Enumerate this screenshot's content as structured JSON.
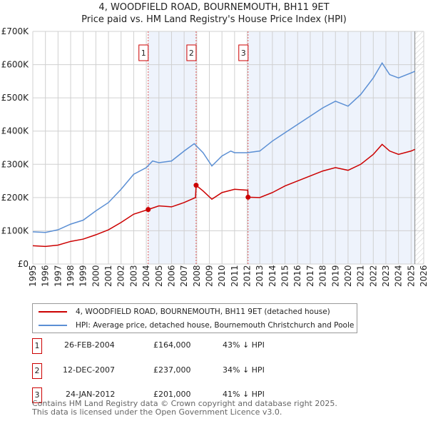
{
  "title": "4, WOODFIELD ROAD, BOURNEMOUTH, BH11 9ET",
  "subtitle": "Price paid vs. HM Land Registry's House Price Index (HPI)",
  "chart_data": {
    "type": "line",
    "xlim": [
      1995,
      2026
    ],
    "ylim": [
      0,
      700000
    ],
    "y_ticks": [
      0,
      100000,
      200000,
      300000,
      400000,
      500000,
      600000,
      700000
    ],
    "y_tick_labels": [
      "£0",
      "£100K",
      "£200K",
      "£300K",
      "£400K",
      "£500K",
      "£600K",
      "£700K"
    ],
    "x_ticks": [
      1995,
      1996,
      1997,
      1998,
      1999,
      2000,
      2001,
      2002,
      2003,
      2004,
      2005,
      2006,
      2007,
      2008,
      2009,
      2010,
      2011,
      2012,
      2013,
      2014,
      2015,
      2016,
      2017,
      2018,
      2019,
      2020,
      2021,
      2022,
      2023,
      2024,
      2025,
      2026
    ],
    "grid": true,
    "future_hatch_from": 2025.3,
    "series": [
      {
        "name": "4, WOODFIELD ROAD, BOURNEMOUTH, BH11 9ET (detached house)",
        "color": "#cc0000",
        "x": [
          1995,
          1996,
          1997,
          1998,
          1999,
          2000,
          2001,
          2002,
          2003,
          2004.15,
          2005,
          2006,
          2007,
          2007.9,
          2007.95,
          2008.5,
          2009.2,
          2010,
          2011,
          2012.05,
          2012.07,
          2013,
          2014,
          2015,
          2016,
          2017,
          2018,
          2019,
          2020,
          2021,
          2022,
          2022.7,
          2023.3,
          2024,
          2025,
          2025.3
        ],
        "y": [
          55000,
          53000,
          57000,
          68000,
          75000,
          88000,
          103000,
          125000,
          150000,
          164000,
          175000,
          172000,
          185000,
          200000,
          237000,
          220000,
          195000,
          215000,
          225000,
          222000,
          201000,
          200000,
          215000,
          235000,
          250000,
          265000,
          280000,
          290000,
          282000,
          300000,
          330000,
          360000,
          340000,
          330000,
          340000,
          345000
        ]
      },
      {
        "name": "HPI: Average price, detached house, Bournemouth Christchurch and Poole",
        "color": "#5b8fd4",
        "x": [
          1995,
          1996,
          1997,
          1998,
          1999,
          2000,
          2001,
          2002,
          2003,
          2004,
          2004.5,
          2005,
          2006,
          2007,
          2007.8,
          2008.5,
          2009.2,
          2010,
          2010.7,
          2011,
          2012,
          2013,
          2014,
          2015,
          2016,
          2017,
          2018,
          2019,
          2020,
          2021,
          2022,
          2022.7,
          2023.3,
          2024,
          2025,
          2025.3
        ],
        "y": [
          97000,
          95000,
          103000,
          120000,
          132000,
          160000,
          185000,
          225000,
          270000,
          290000,
          310000,
          305000,
          310000,
          340000,
          362000,
          335000,
          295000,
          325000,
          340000,
          335000,
          335000,
          340000,
          370000,
          395000,
          420000,
          445000,
          470000,
          490000,
          475000,
          510000,
          560000,
          605000,
          570000,
          560000,
          575000,
          580000
        ]
      }
    ],
    "sales": [
      {
        "label": "1",
        "x": 2004.15,
        "date": "26-FEB-2004",
        "price": 164000,
        "price_text": "£164,000",
        "hpi": "43% ↓ HPI"
      },
      {
        "label": "2",
        "x": 2007.95,
        "date": "12-DEC-2007",
        "price": 237000,
        "price_text": "£237,000",
        "hpi": "34% ↓ HPI"
      },
      {
        "label": "3",
        "x": 2012.07,
        "date": "24-JAN-2012",
        "price": 201000,
        "price_text": "£201,000",
        "hpi": "41% ↓ HPI"
      }
    ]
  },
  "legend": {
    "red": "4, WOODFIELD ROAD, BOURNEMOUTH, BH11 9ET (detached house)",
    "blue": "HPI: Average price, detached house, Bournemouth Christchurch and Poole"
  },
  "footer": {
    "line1": "Contains HM Land Registry data © Crown copyright and database right 2025.",
    "line2": "This data is licensed under the Open Government Licence v3.0."
  }
}
